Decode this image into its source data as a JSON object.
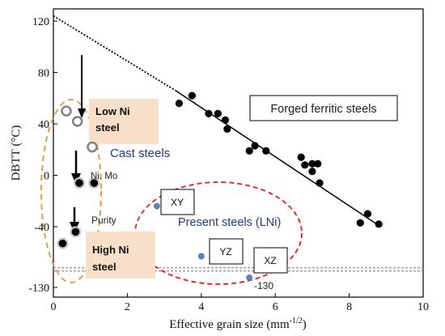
{
  "chart_data": {
    "type": "scatter",
    "xlabel_main": "Effective grain size (mm",
    "xlabel_sup": "-1/2",
    "xlabel_tail": ")",
    "ylabel": "DBTT (°C)",
    "xlim": [
      0,
      10
    ],
    "ylim": [
      -130,
      130
    ],
    "xticks": [
      0,
      2,
      4,
      6,
      8,
      10
    ],
    "xtick_labels": [
      "0",
      "2",
      "4",
      "6",
      "8",
      "10"
    ],
    "yticks": [
      120,
      80,
      40,
      0,
      -40,
      -130
    ],
    "ytick_labels": [
      "120",
      "80",
      "40",
      "0",
      "-40",
      "-130"
    ],
    "grid": false,
    "series": [
      {
        "name": "Forged ferritic steels",
        "marker": "filled-circle",
        "color": "#000000",
        "points": [
          [
            3.4,
            56
          ],
          [
            3.75,
            62
          ],
          [
            4.2,
            48
          ],
          [
            4.45,
            48
          ],
          [
            4.65,
            43
          ],
          [
            4.7,
            36
          ],
          [
            5.3,
            19
          ],
          [
            5.45,
            23
          ],
          [
            5.75,
            19
          ],
          [
            6.7,
            14
          ],
          [
            6.8,
            8
          ],
          [
            7.0,
            9
          ],
          [
            7.0,
            3
          ],
          [
            7.15,
            9
          ],
          [
            7.2,
            -6
          ],
          [
            8.3,
            -37
          ],
          [
            8.5,
            -30
          ],
          [
            8.8,
            -38
          ]
        ]
      },
      {
        "name": "Cast steels",
        "marker": "ring",
        "color": "#808080",
        "points": [
          [
            0.35,
            50
          ],
          [
            0.65,
            42
          ],
          [
            1.05,
            22
          ]
        ]
      },
      {
        "name": "Low Ni / High Ni",
        "marker": "filled-circle-ring",
        "color": "#000000",
        "points": [
          [
            0.7,
            -6
          ],
          [
            1.1,
            -6
          ],
          [
            0.6,
            -44
          ],
          [
            0.25,
            -53
          ]
        ]
      },
      {
        "name": "Present steels (LNi)",
        "marker": "dot",
        "color": "#5b85b9",
        "points": [
          [
            2.8,
            -24
          ],
          [
            4.0,
            -63
          ],
          [
            5.3,
            -76
          ]
        ]
      }
    ],
    "trend_line": {
      "solid_from": [
        3.3,
        66
      ],
      "solid_to": [
        8.85,
        -40
      ],
      "dotted_from": [
        0.0,
        124
      ],
      "dotted_to": [
        3.3,
        66
      ]
    },
    "baseline_y": -72,
    "annotations": {
      "forged": "Forged ferritic steels",
      "cast": "Cast steels",
      "low_ni_line1": "Low Ni",
      "low_ni_line2": "steel",
      "high_ni_line1": "High Ni",
      "high_ni_line2": "steel",
      "ni_mo": "Ni, Mo",
      "purity": "Purity",
      "present": "Present steels (LNi)",
      "xy": "XY",
      "yz": "YZ",
      "xz": "XZ",
      "m130": "-130"
    },
    "colors": {
      "orange_dash": "#e39b4d",
      "red_dash": "#e02020",
      "label_bg": "#f8dfc8",
      "blue_text": "#1f3a86",
      "blue_dot": "#5b85b9"
    }
  }
}
